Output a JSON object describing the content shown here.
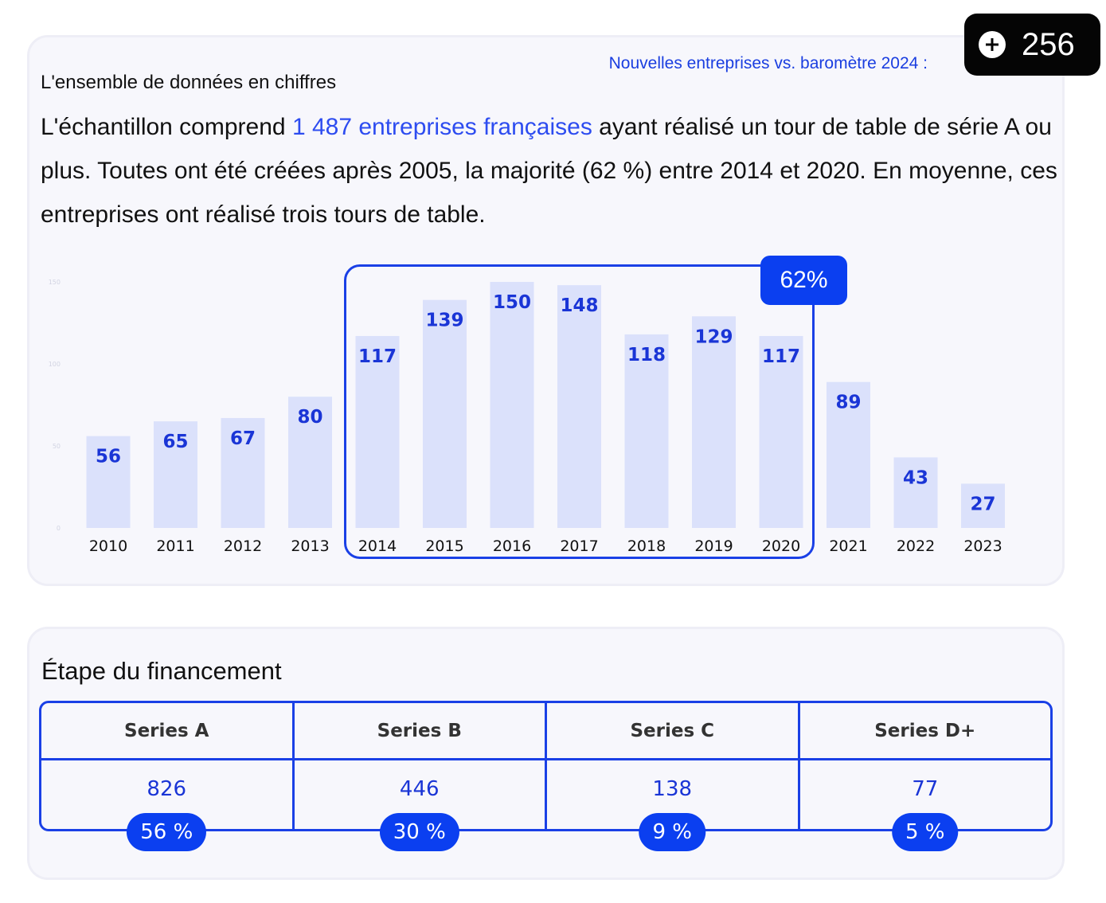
{
  "header": {
    "subtitle": "L'ensemble de données en chiffres",
    "barometer_link": "Nouvelles entreprises vs. baromètre 2024 :",
    "counter_badge": "256"
  },
  "intro": {
    "part1": "L'échantillon comprend ",
    "highlight": "1 487 entreprises françaises",
    "part2": " ayant réalisé un tour de table de série A ou plus. Toutes ont été créées après 2005, la majorité (62 %) entre 2014 et 2020. En moyenne, ces entreprises ont réalisé trois tours de table."
  },
  "chart_data": {
    "type": "bar",
    "categories": [
      "2010",
      "2011",
      "2012",
      "2013",
      "2014",
      "2015",
      "2016",
      "2017",
      "2018",
      "2019",
      "2020",
      "2021",
      "2022",
      "2023"
    ],
    "values": [
      56,
      65,
      67,
      80,
      117,
      139,
      150,
      148,
      118,
      129,
      117,
      89,
      43,
      27
    ],
    "title": "",
    "xlabel": "",
    "ylabel": "",
    "ylim": [
      0,
      150
    ],
    "highlight": {
      "from": "2014",
      "to": "2020",
      "label": "62%"
    },
    "colors": {
      "bar": "#dbe1fb",
      "label": "#1a35d6",
      "highlight": "#1a40e6"
    }
  },
  "stages": {
    "title": "Étape du financement",
    "columns": [
      {
        "name": "Series A",
        "count": "826",
        "share": "56 %"
      },
      {
        "name": "Series B",
        "count": "446",
        "share": "30 %"
      },
      {
        "name": "Series C",
        "count": "138",
        "share": "9 %"
      },
      {
        "name": "Series D+",
        "count": "77",
        "share": "5 %"
      }
    ]
  }
}
